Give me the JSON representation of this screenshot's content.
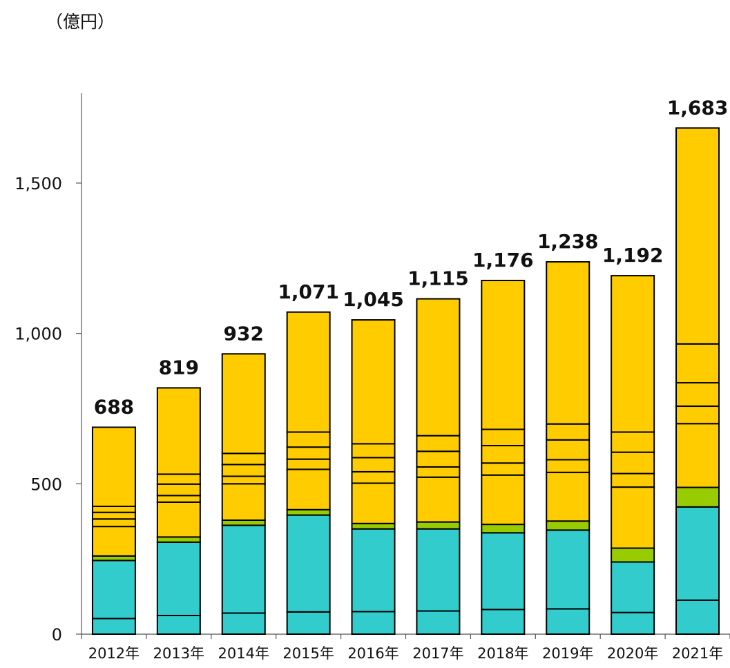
{
  "chart_data": {
    "type": "bar",
    "stacked": true,
    "unit": "（億円）",
    "categories": [
      "2012年",
      "2013年",
      "2014年",
      "2015年",
      "2016年",
      "2017年",
      "2018年",
      "2019年",
      "2020年",
      "2021年"
    ],
    "totals": [
      "688",
      "819",
      "932",
      "1,071",
      "1,045",
      "1,115",
      "1,176",
      "1,238",
      "1,192",
      "1,683"
    ],
    "total_values": [
      688,
      819,
      932,
      1071,
      1045,
      1115,
      1176,
      1238,
      1192,
      1683
    ],
    "yticks": [
      0,
      500,
      1000,
      1500
    ],
    "ytick_labels": [
      "0",
      "500",
      "1,000",
      "1,500"
    ],
    "ylim": [
      0,
      1800
    ],
    "grid": false,
    "legend": "none",
    "colors": {
      "cyan": "#33CCCC",
      "green": "#99CC00",
      "yellow": "#FFCC00",
      "outline": "#000000"
    },
    "segments": [
      [
        {
          "color": "cyan",
          "value": 52
        },
        {
          "color": "cyan",
          "value": 193
        },
        {
          "color": "green",
          "value": 15
        },
        {
          "color": "yellow",
          "value": 98
        },
        {
          "color": "yellow",
          "value": 25
        },
        {
          "color": "yellow",
          "value": 22
        },
        {
          "color": "yellow",
          "value": 20
        },
        {
          "color": "yellow",
          "value": 263
        }
      ],
      [
        {
          "color": "cyan",
          "value": 62
        },
        {
          "color": "cyan",
          "value": 244
        },
        {
          "color": "green",
          "value": 17
        },
        {
          "color": "yellow",
          "value": 116
        },
        {
          "color": "yellow",
          "value": 22
        },
        {
          "color": "yellow",
          "value": 38
        },
        {
          "color": "yellow",
          "value": 33
        },
        {
          "color": "yellow",
          "value": 287
        }
      ],
      [
        {
          "color": "cyan",
          "value": 70
        },
        {
          "color": "cyan",
          "value": 292
        },
        {
          "color": "green",
          "value": 17
        },
        {
          "color": "yellow",
          "value": 121
        },
        {
          "color": "yellow",
          "value": 25
        },
        {
          "color": "yellow",
          "value": 39
        },
        {
          "color": "yellow",
          "value": 37
        },
        {
          "color": "yellow",
          "value": 331
        }
      ],
      [
        {
          "color": "cyan",
          "value": 74
        },
        {
          "color": "cyan",
          "value": 322
        },
        {
          "color": "green",
          "value": 18
        },
        {
          "color": "yellow",
          "value": 134
        },
        {
          "color": "yellow",
          "value": 34
        },
        {
          "color": "yellow",
          "value": 40
        },
        {
          "color": "yellow",
          "value": 50
        },
        {
          "color": "yellow",
          "value": 399
        }
      ],
      [
        {
          "color": "cyan",
          "value": 75
        },
        {
          "color": "cyan",
          "value": 275
        },
        {
          "color": "green",
          "value": 18
        },
        {
          "color": "yellow",
          "value": 134
        },
        {
          "color": "yellow",
          "value": 38
        },
        {
          "color": "yellow",
          "value": 47
        },
        {
          "color": "yellow",
          "value": 46
        },
        {
          "color": "yellow",
          "value": 412
        }
      ],
      [
        {
          "color": "cyan",
          "value": 77
        },
        {
          "color": "cyan",
          "value": 273
        },
        {
          "color": "green",
          "value": 23
        },
        {
          "color": "yellow",
          "value": 149
        },
        {
          "color": "yellow",
          "value": 34
        },
        {
          "color": "yellow",
          "value": 52
        },
        {
          "color": "yellow",
          "value": 52
        },
        {
          "color": "yellow",
          "value": 455
        }
      ],
      [
        {
          "color": "cyan",
          "value": 82
        },
        {
          "color": "cyan",
          "value": 255
        },
        {
          "color": "green",
          "value": 28
        },
        {
          "color": "yellow",
          "value": 164
        },
        {
          "color": "yellow",
          "value": 40
        },
        {
          "color": "yellow",
          "value": 58
        },
        {
          "color": "yellow",
          "value": 54
        },
        {
          "color": "yellow",
          "value": 495
        }
      ],
      [
        {
          "color": "cyan",
          "value": 84
        },
        {
          "color": "cyan",
          "value": 262
        },
        {
          "color": "green",
          "value": 30
        },
        {
          "color": "yellow",
          "value": 162
        },
        {
          "color": "yellow",
          "value": 42
        },
        {
          "color": "yellow",
          "value": 66
        },
        {
          "color": "yellow",
          "value": 53
        },
        {
          "color": "yellow",
          "value": 539
        }
      ],
      [
        {
          "color": "cyan",
          "value": 72
        },
        {
          "color": "cyan",
          "value": 168
        },
        {
          "color": "green",
          "value": 46
        },
        {
          "color": "yellow",
          "value": 203
        },
        {
          "color": "yellow",
          "value": 45
        },
        {
          "color": "yellow",
          "value": 71
        },
        {
          "color": "yellow",
          "value": 67
        },
        {
          "color": "yellow",
          "value": 520
        }
      ],
      [
        {
          "color": "cyan",
          "value": 113
        },
        {
          "color": "cyan",
          "value": 310
        },
        {
          "color": "green",
          "value": 65
        },
        {
          "color": "yellow",
          "value": 212
        },
        {
          "color": "yellow",
          "value": 58
        },
        {
          "color": "yellow",
          "value": 78
        },
        {
          "color": "yellow",
          "value": 129
        },
        {
          "color": "yellow",
          "value": 718
        }
      ]
    ]
  }
}
